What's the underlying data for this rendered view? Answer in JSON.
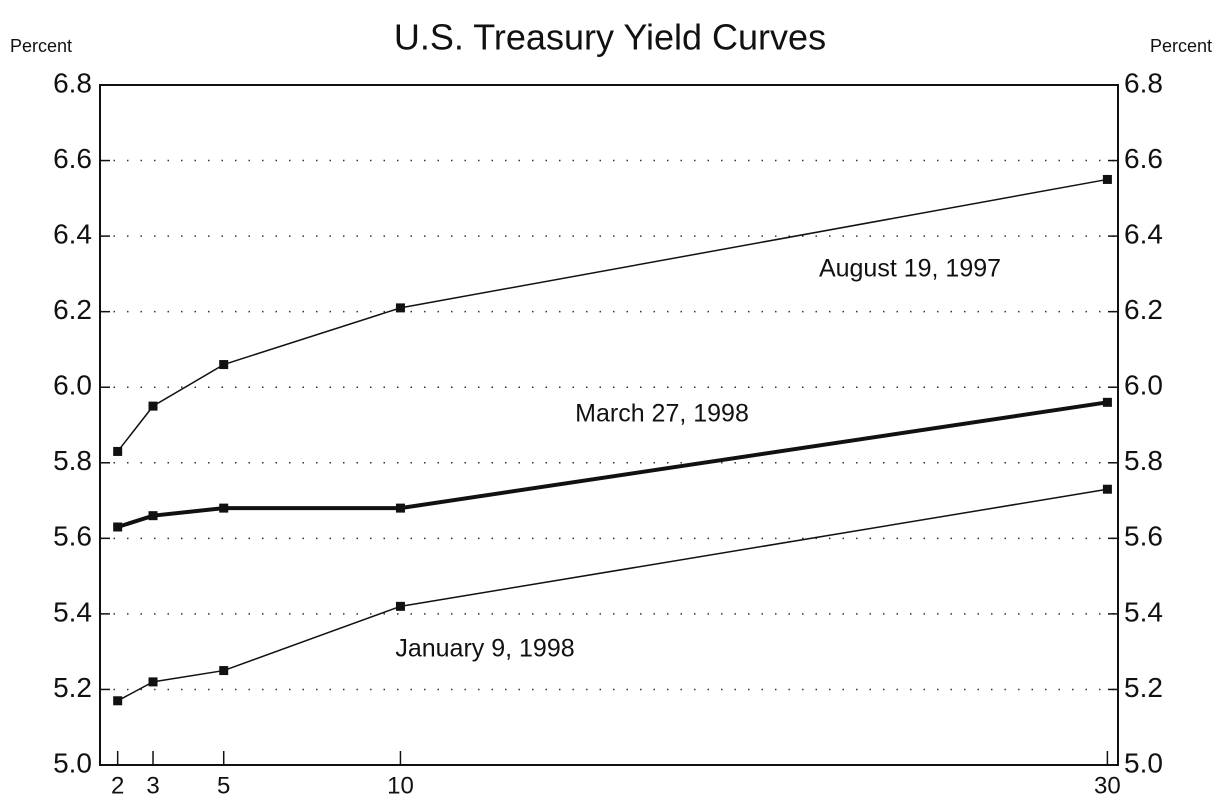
{
  "chart_data": {
    "type": "line",
    "title": "U.S. Treasury Yield Curves",
    "ylabel": "Percent",
    "y2label": "Percent",
    "x": [
      2,
      3,
      5,
      10,
      30
    ],
    "xlim": [
      1.5,
      30.3
    ],
    "xticks": [
      2,
      3,
      5,
      10,
      30
    ],
    "ylim": [
      5.0,
      6.8
    ],
    "yticks": [
      {
        "value": 5.0,
        "label": "5.0"
      },
      5.2,
      5.4,
      5.6,
      5.8,
      {
        "value": 6.0,
        "label": "6.0"
      },
      6.2,
      6.4,
      6.6,
      6.8
    ],
    "y2lim": [
      5.0,
      6.8
    ],
    "y2ticks": [
      {
        "value": 5.0,
        "label": "5.0"
      },
      5.2,
      5.4,
      5.6,
      5.8,
      {
        "value": 6.0,
        "label": "6.0"
      },
      6.2,
      6.4,
      6.6,
      6.8
    ],
    "grid": true,
    "series": [
      {
        "name": "August 19, 1997",
        "color": "#111111",
        "linewidth": 1.5,
        "values": [
          5.83,
          5.95,
          6.06,
          6.21,
          6.55
        ]
      },
      {
        "name": "March 27, 1998",
        "color": "#111111",
        "linewidth": 4,
        "values": [
          5.63,
          5.66,
          5.68,
          5.68,
          5.96
        ]
      },
      {
        "name": "January 9, 1998",
        "color": "#111111",
        "linewidth": 1.5,
        "values": [
          5.17,
          5.22,
          5.25,
          5.42,
          5.73
        ]
      }
    ]
  }
}
